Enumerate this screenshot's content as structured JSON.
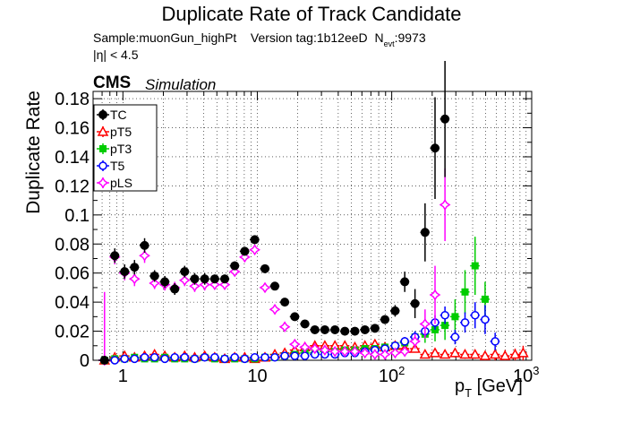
{
  "chart_data": {
    "type": "scatter",
    "title": "Duplicate Rate of Track Candidate",
    "subtitle": {
      "sample": "Sample:muonGun_highPt",
      "version": "Version tag:1b12eeD",
      "nevt_label": "N",
      "nevt_sub": "evt",
      "nevt_value": ":9973"
    },
    "cut_label": "|η| < 4.5",
    "experiment": "CMS",
    "status": "Simulation",
    "xlabel_main": "p",
    "xlabel_sub": "T",
    "xlabel_unit": " [GeV]",
    "ylabel": "Duplicate Rate",
    "xscale": "log",
    "xlim": [
      0.6,
      1100
    ],
    "ylim": [
      0,
      0.185
    ],
    "grid": true,
    "legend_position": "top-left",
    "x_ticks": [
      {
        "v": 1,
        "label": "1"
      },
      {
        "v": 10,
        "label": "10"
      },
      {
        "v": 100,
        "label": "10",
        "sup": "2"
      },
      {
        "v": 1000,
        "label": "10",
        "sup": "3"
      }
    ],
    "y_ticks": [
      {
        "v": 0,
        "label": "0"
      },
      {
        "v": 0.02,
        "label": "0.02"
      },
      {
        "v": 0.04,
        "label": "0.04"
      },
      {
        "v": 0.06,
        "label": "0.06"
      },
      {
        "v": 0.08,
        "label": "0.08"
      },
      {
        "v": 0.1,
        "label": "0.1"
      },
      {
        "v": 0.12,
        "label": "0.12"
      },
      {
        "v": 0.14,
        "label": "0.14"
      },
      {
        "v": 0.16,
        "label": "0.16"
      },
      {
        "v": 0.18,
        "label": "0.18"
      }
    ],
    "x": [
      0.73,
      0.87,
      1.03,
      1.22,
      1.45,
      1.72,
      2.05,
      2.43,
      2.88,
      3.42,
      4.06,
      4.82,
      5.72,
      6.79,
      8.06,
      9.57,
      11.4,
      13.5,
      16.0,
      19.0,
      22.6,
      26.8,
      31.8,
      37.8,
      44.8,
      53.2,
      63.2,
      75.0,
      89.0,
      106,
      125,
      149,
      177,
      210,
      249,
      296,
      351,
      417,
      495,
      588,
      697,
      828,
      950
    ],
    "x_err": [
      0.07,
      0.07,
      0.09,
      0.1,
      0.12,
      0.14,
      0.17,
      0.2,
      0.23,
      0.28,
      0.33,
      0.39,
      0.47,
      0.55,
      0.66,
      0.78,
      0.93,
      1.1,
      1.3,
      1.55,
      1.8,
      2.2,
      2.6,
      3.1,
      3.6,
      4.3,
      5.2,
      6.1,
      7.2,
      8.6,
      10,
      12,
      14,
      17,
      20,
      24,
      28,
      34,
      40,
      48,
      57,
      68,
      60
    ],
    "series": [
      {
        "name": "TC",
        "color": "#000000",
        "marker": "filled-circle",
        "y": [
          0.0,
          0.072,
          0.061,
          0.064,
          0.079,
          0.058,
          0.054,
          0.049,
          0.061,
          0.056,
          0.056,
          0.056,
          0.056,
          0.065,
          0.075,
          0.083,
          0.063,
          0.051,
          0.04,
          0.03,
          0.025,
          0.021,
          0.021,
          0.021,
          0.02,
          0.02,
          0.021,
          0.022,
          0.028,
          0.034,
          0.054,
          0.039,
          0.088,
          0.146,
          0.166,
          null,
          null,
          null,
          null,
          null,
          null,
          null,
          null
        ],
        "err": [
          0.0,
          0.005,
          0.005,
          0.005,
          0.005,
          0.004,
          0.004,
          0.004,
          0.004,
          0.004,
          0.004,
          0.003,
          0.003,
          0.003,
          0.003,
          0.003,
          0.003,
          0.002,
          0.002,
          0.002,
          0.002,
          0.001,
          0.001,
          0.001,
          0.001,
          0.001,
          0.001,
          0.002,
          0.003,
          0.004,
          0.007,
          0.01,
          0.02,
          0.035,
          0.04,
          null,
          null,
          null,
          null,
          null,
          null,
          null,
          null
        ]
      },
      {
        "name": "pT5",
        "color": "#ff0000",
        "marker": "open-triangle",
        "y": [
          0.0,
          0.002,
          0.003,
          0.002,
          0.003,
          0.004,
          0.003,
          0.002,
          0.003,
          0.002,
          0.003,
          0.002,
          0.001,
          0.002,
          0.002,
          0.001,
          0.002,
          0.004,
          0.005,
          0.007,
          0.009,
          0.01,
          0.01,
          0.01,
          0.01,
          0.009,
          0.01,
          0.011,
          0.009,
          0.01,
          0.008,
          0.008,
          0.004,
          0.005,
          0.004,
          0.005,
          0.004,
          0.004,
          0.003,
          0.004,
          0.003,
          0.004,
          0.005
        ],
        "err": [
          0.0,
          0.001,
          0.001,
          0.001,
          0.001,
          0.001,
          0.001,
          0.001,
          0.001,
          0.001,
          0.001,
          0.001,
          0.001,
          0.001,
          0.001,
          0.001,
          0.001,
          0.001,
          0.001,
          0.001,
          0.001,
          0.001,
          0.001,
          0.001,
          0.001,
          0.001,
          0.001,
          0.001,
          0.001,
          0.002,
          0.002,
          0.002,
          0.002,
          0.002,
          0.002,
          0.003,
          0.003,
          0.003,
          0.003,
          0.004,
          0.004,
          0.004,
          0.005
        ]
      },
      {
        "name": "pT3",
        "color": "#00cc00",
        "marker": "filled-square",
        "y": [
          0.0,
          0.001,
          0.001,
          0.002,
          0.001,
          0.001,
          0.002,
          0.001,
          0.001,
          0.001,
          0.002,
          0.001,
          0.001,
          0.001,
          0.001,
          0.001,
          0.002,
          0.002,
          0.003,
          0.004,
          0.005,
          0.005,
          0.006,
          0.006,
          0.007,
          0.007,
          0.008,
          0.008,
          0.009,
          0.01,
          0.012,
          0.016,
          0.018,
          0.021,
          0.024,
          0.03,
          0.047,
          0.065,
          0.042,
          null,
          null,
          null,
          null
        ],
        "err": [
          0.0,
          0.001,
          0.001,
          0.001,
          0.001,
          0.001,
          0.001,
          0.001,
          0.001,
          0.001,
          0.001,
          0.001,
          0.001,
          0.001,
          0.001,
          0.001,
          0.001,
          0.001,
          0.001,
          0.001,
          0.001,
          0.001,
          0.001,
          0.001,
          0.001,
          0.001,
          0.001,
          0.001,
          0.001,
          0.002,
          0.003,
          0.004,
          0.006,
          0.008,
          0.01,
          0.012,
          0.015,
          0.02,
          0.012,
          null,
          null,
          null,
          null
        ]
      },
      {
        "name": "T5",
        "color": "#0000ff",
        "marker": "open-circle",
        "y": [
          0.0,
          0.0,
          0.001,
          0.001,
          0.002,
          0.002,
          0.001,
          0.002,
          0.002,
          0.001,
          0.002,
          0.002,
          0.001,
          0.002,
          0.001,
          0.002,
          0.002,
          0.002,
          0.003,
          0.003,
          0.003,
          0.004,
          0.004,
          0.004,
          0.005,
          0.005,
          0.006,
          0.007,
          0.008,
          0.01,
          0.013,
          0.016,
          0.02,
          0.026,
          0.031,
          0.016,
          0.026,
          0.031,
          0.028,
          0.013,
          null,
          null,
          null
        ],
        "err": [
          0.0,
          0.001,
          0.001,
          0.001,
          0.001,
          0.001,
          0.001,
          0.001,
          0.001,
          0.001,
          0.001,
          0.001,
          0.001,
          0.001,
          0.001,
          0.001,
          0.001,
          0.001,
          0.001,
          0.001,
          0.001,
          0.001,
          0.001,
          0.001,
          0.001,
          0.001,
          0.001,
          0.001,
          0.002,
          0.002,
          0.003,
          0.004,
          0.004,
          0.005,
          0.006,
          0.005,
          0.007,
          0.009,
          0.01,
          0.006,
          null,
          null,
          null
        ]
      },
      {
        "name": "pLS",
        "color": "#ff00ff",
        "marker": "open-star",
        "y": [
          0.0,
          0.071,
          0.06,
          0.056,
          0.072,
          0.053,
          0.052,
          0.05,
          0.055,
          0.051,
          0.052,
          0.052,
          0.052,
          0.061,
          0.071,
          0.076,
          0.05,
          0.035,
          0.023,
          0.011,
          0.009,
          0.008,
          0.007,
          0.006,
          0.006,
          0.006,
          0.005,
          0.004,
          0.004,
          0.005,
          0.006,
          0.013,
          0.025,
          0.045,
          0.107,
          null,
          null,
          null,
          null,
          null,
          null,
          null,
          null
        ],
        "err": [
          0.047,
          0.005,
          0.005,
          0.005,
          0.005,
          0.004,
          0.004,
          0.004,
          0.004,
          0.004,
          0.004,
          0.003,
          0.003,
          0.003,
          0.003,
          0.003,
          0.003,
          0.002,
          0.002,
          0.001,
          0.001,
          0.001,
          0.001,
          0.001,
          0.001,
          0.001,
          0.001,
          0.001,
          0.001,
          0.002,
          0.003,
          0.005,
          0.01,
          0.02,
          0.025,
          null,
          null,
          null,
          null,
          null,
          null,
          null,
          null
        ]
      }
    ]
  }
}
